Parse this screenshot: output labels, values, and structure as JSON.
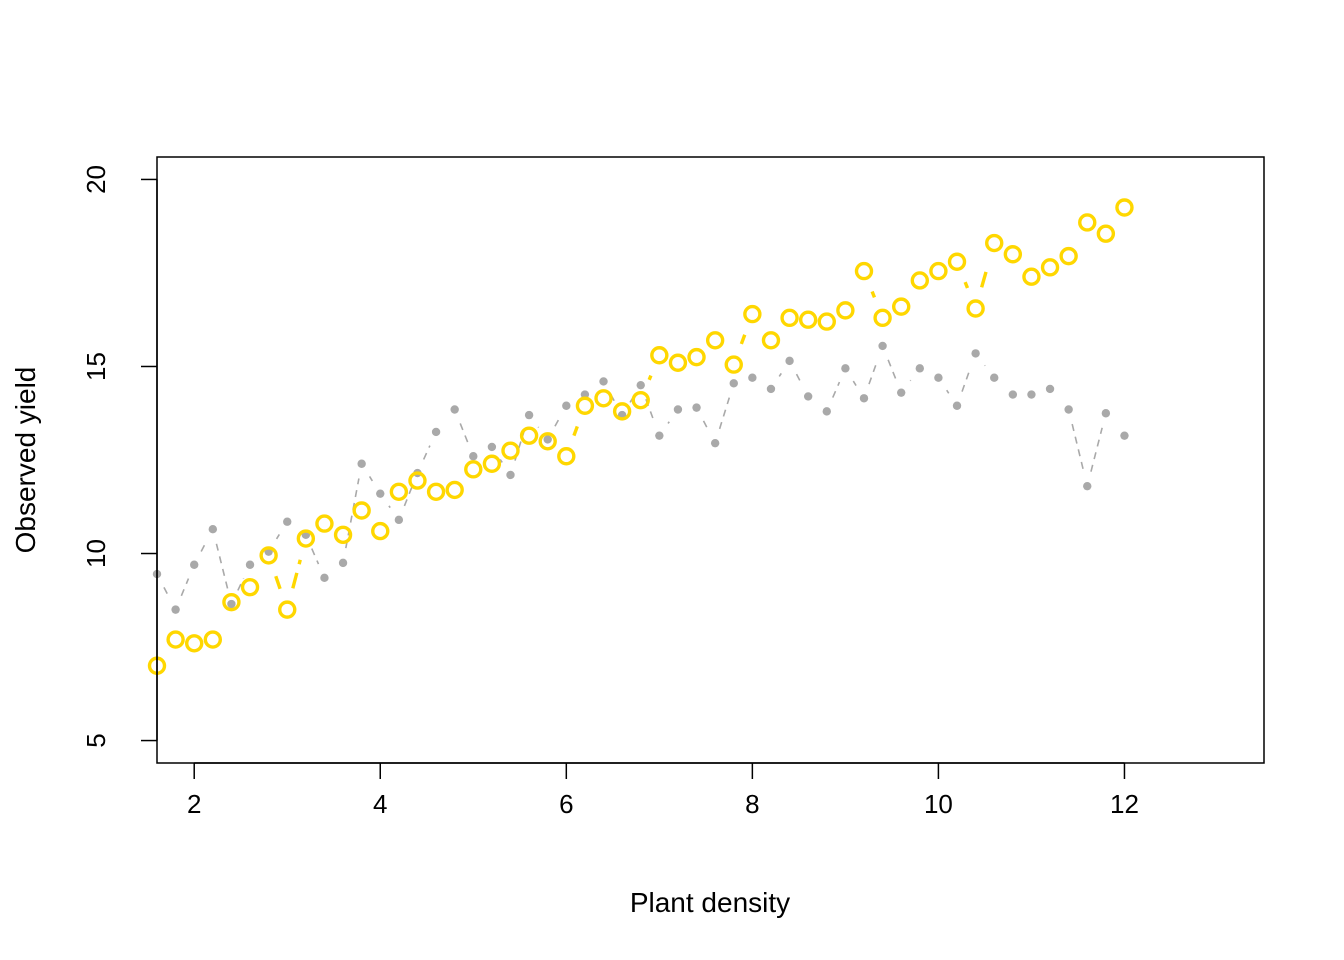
{
  "chart_data": {
    "type": "line",
    "title": "",
    "xlabel": "Plant density",
    "ylabel": "Observed yield",
    "xlim": [
      1.6,
      13.5
    ],
    "ylim": [
      4.4,
      20.6
    ],
    "x_ticks": [
      2,
      4,
      6,
      8,
      10,
      12
    ],
    "y_ticks": [
      5,
      10,
      15,
      20
    ],
    "grid": false,
    "legend": "none",
    "x": [
      1.6,
      1.8,
      2.0,
      2.2,
      2.4,
      2.6,
      2.8,
      3.0,
      3.2,
      3.4,
      3.6,
      3.8,
      4.0,
      4.2,
      4.4,
      4.6,
      4.8,
      5.0,
      5.2,
      5.4,
      5.6,
      5.8,
      6.0,
      6.2,
      6.4,
      6.6,
      6.8,
      7.0,
      7.2,
      7.4,
      7.6,
      7.8,
      8.0,
      8.2,
      8.4,
      8.6,
      8.8,
      9.0,
      9.2,
      9.4,
      9.6,
      9.8,
      10.0,
      10.2,
      10.4,
      10.6,
      10.8,
      11.0,
      11.2,
      11.4,
      11.6,
      11.8,
      12.0
    ],
    "series": [
      {
        "color": "#A9A9A9",
        "line_style": "dashed-thin",
        "marker": "filled-dot",
        "values": [
          9.45,
          8.5,
          9.7,
          10.65,
          8.65,
          9.7,
          10.05,
          10.85,
          10.5,
          9.35,
          9.75,
          12.4,
          11.6,
          10.9,
          12.15,
          13.25,
          13.85,
          12.6,
          12.85,
          12.1,
          13.7,
          13.05,
          13.95,
          14.25,
          14.6,
          13.7,
          14.5,
          13.15,
          13.85,
          13.9,
          12.95,
          14.55,
          14.7,
          14.4,
          15.15,
          14.2,
          13.8,
          14.95,
          14.15,
          15.55,
          14.3,
          14.95,
          14.7,
          13.95,
          15.35,
          14.7,
          14.25,
          14.25,
          14.4,
          13.85,
          11.8,
          13.75,
          13.15
        ]
      },
      {
        "color": "#FFD700",
        "line_style": "dashed-thick",
        "marker": "open-circle",
        "values": [
          7.0,
          7.7,
          7.6,
          7.7,
          8.7,
          9.1,
          9.95,
          8.5,
          10.4,
          10.8,
          10.5,
          11.15,
          10.6,
          11.65,
          11.95,
          11.65,
          11.7,
          12.25,
          12.4,
          12.75,
          13.15,
          13.0,
          12.6,
          13.95,
          14.15,
          13.8,
          14.1,
          15.3,
          15.1,
          15.25,
          15.7,
          15.05,
          16.4,
          15.7,
          16.3,
          16.25,
          16.2,
          16.5,
          17.55,
          16.3,
          16.6,
          17.3,
          17.55,
          17.8,
          16.55,
          18.3,
          18.0,
          17.4,
          17.65,
          17.95,
          18.85,
          18.55,
          19.25
        ]
      }
    ]
  }
}
